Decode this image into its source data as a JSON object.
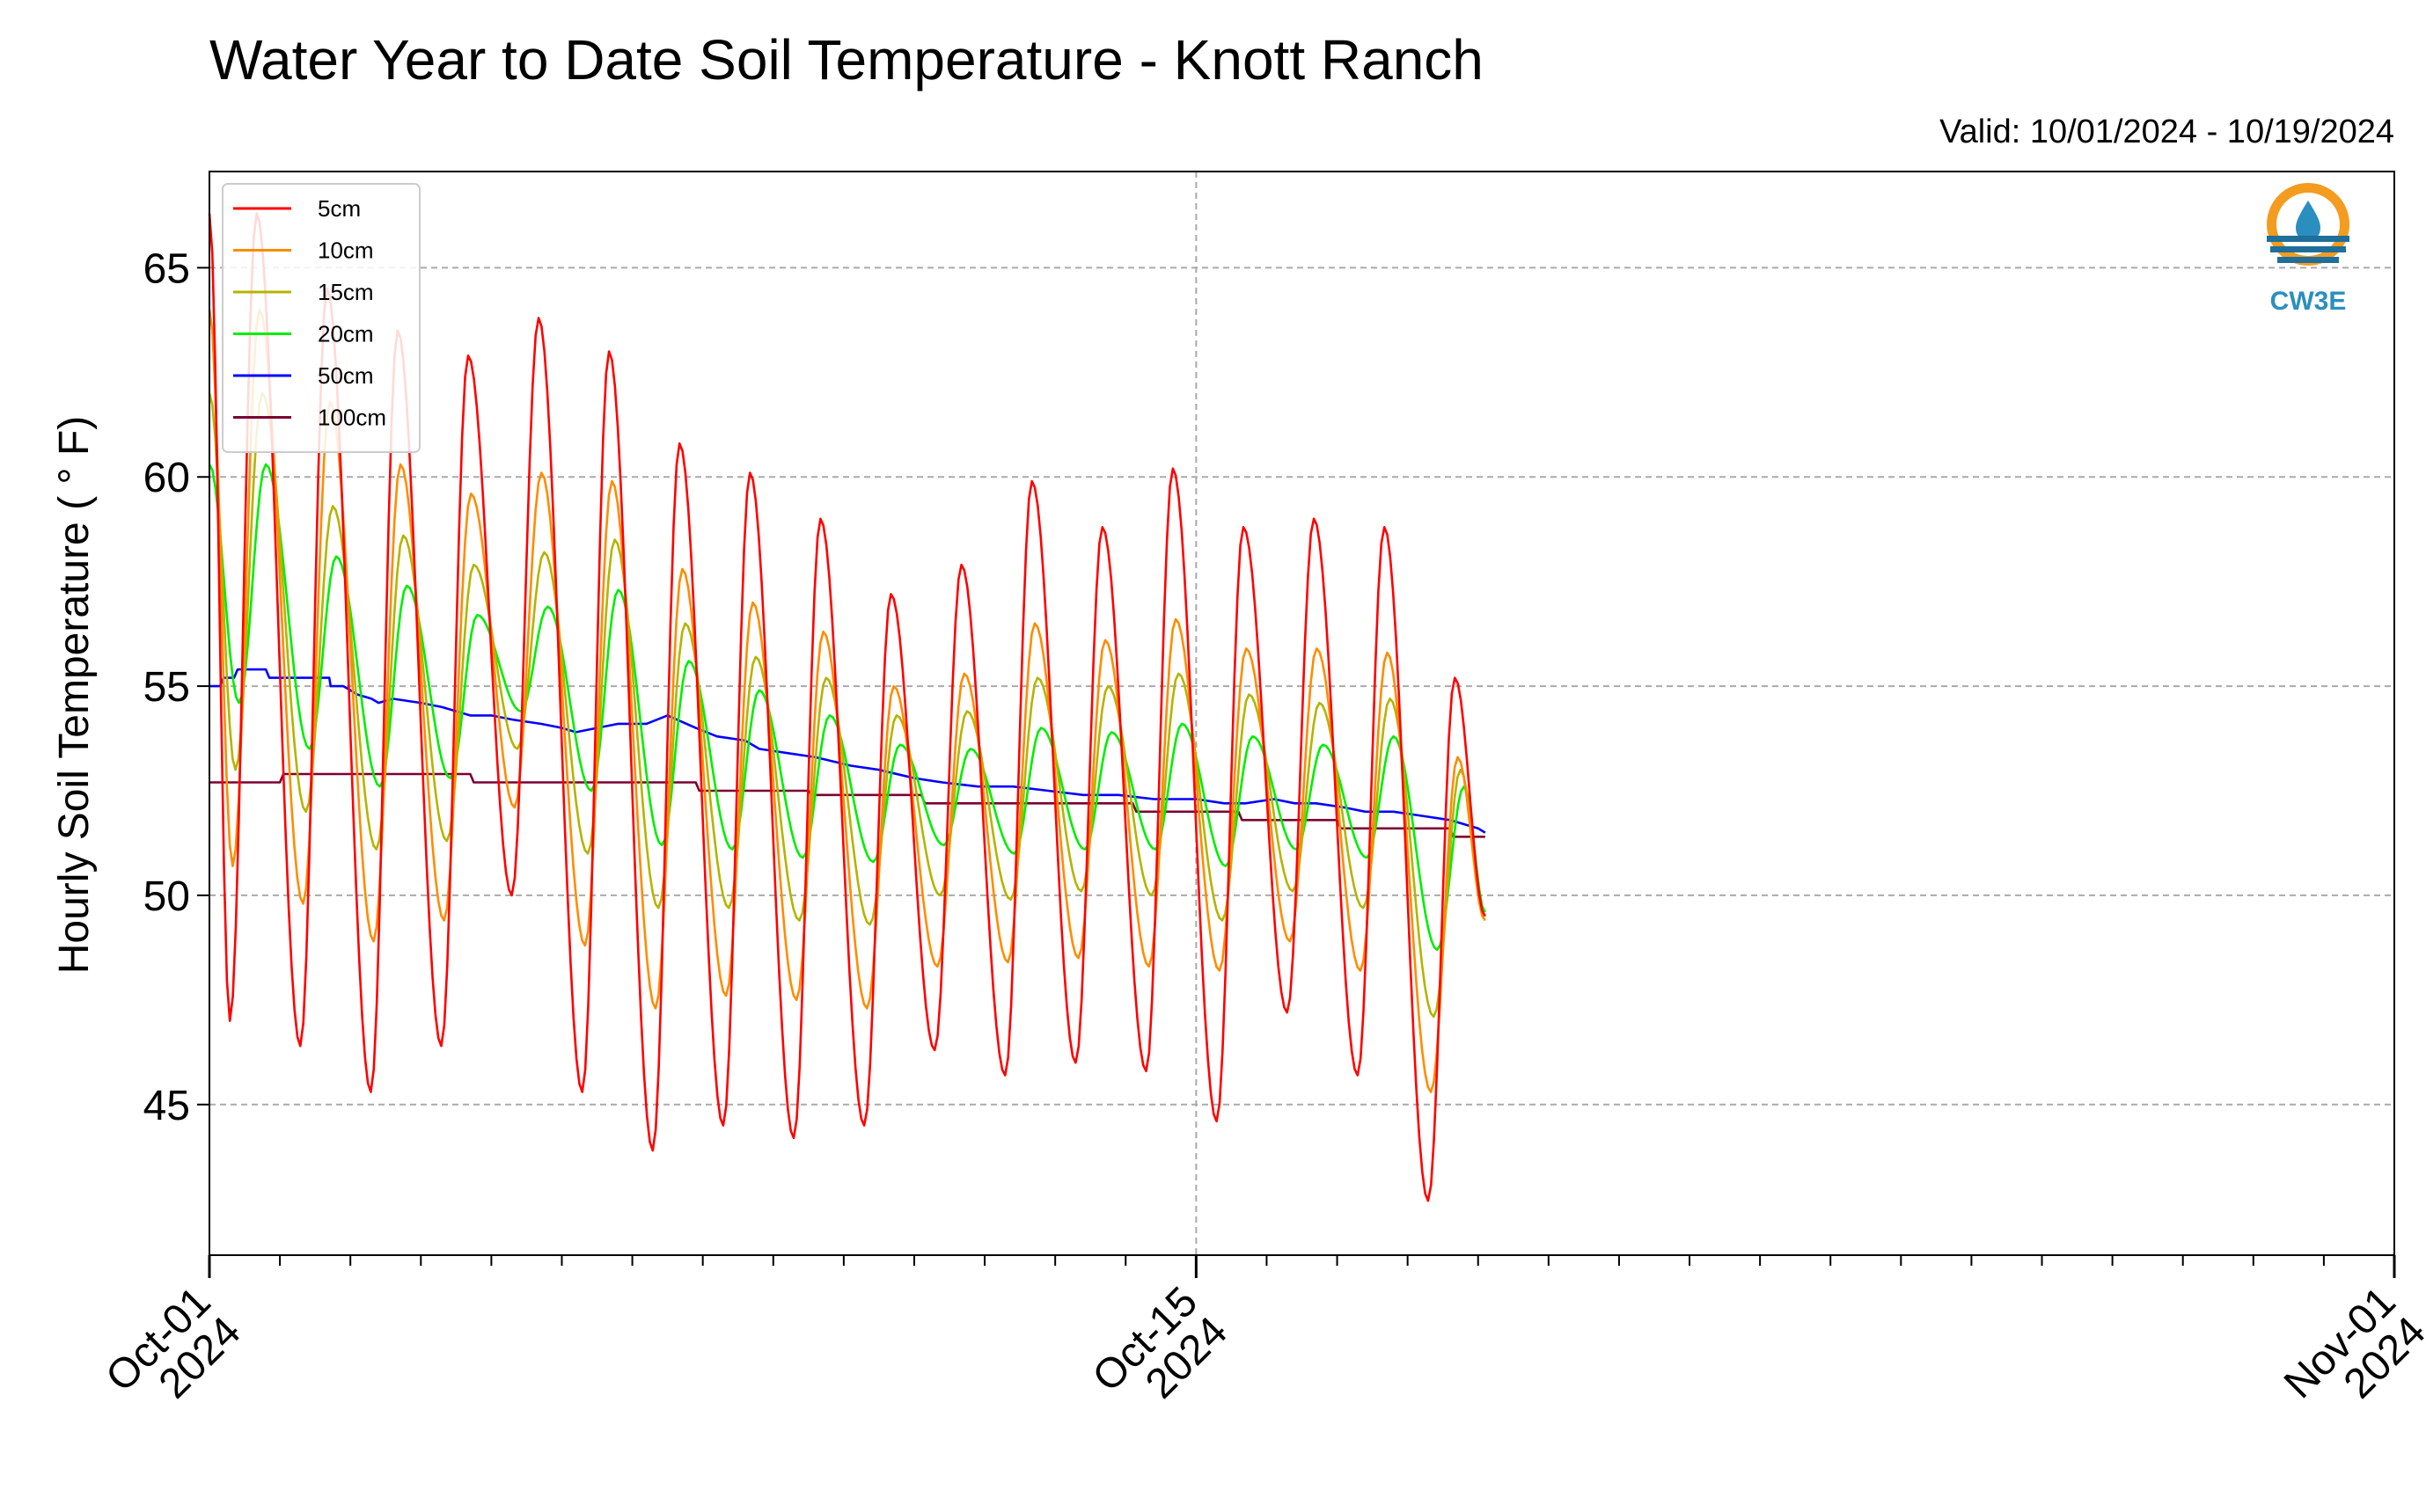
{
  "chart_data": {
    "type": "line",
    "title": "Water Year to Date Soil Temperature - Knott Ranch",
    "subtitle": "Valid: 10/01/2024 - 10/19/2024",
    "ylabel": "Hourly Soil Temperature ( ° F)",
    "xlabel": "",
    "x_range": [
      "2024-10-01",
      "2024-11-01"
    ],
    "ylim": [
      41.4,
      67.3
    ],
    "y_ticks": [
      45,
      50,
      55,
      60,
      65
    ],
    "x_tick_labels": [
      {
        "date": "2024-10-01",
        "line1": "Oct-01",
        "line2": "2024"
      },
      {
        "date": "2024-10-15",
        "line1": "Oct-15",
        "line2": "2024"
      },
      {
        "date": "2024-11-01",
        "line1": "Nov-01",
        "line2": "2024"
      }
    ],
    "grid": true,
    "legend_position": "top-left",
    "logo_text": "CW3E",
    "series": [
      {
        "name": "5cm",
        "color": "#ff0000",
        "daily_max": [
          66.3,
          64.5,
          63.5,
          62.9,
          63.8,
          63.0,
          60.8,
          60.1,
          59.0,
          57.2,
          57.9,
          59.9,
          58.8,
          60.2,
          58.8,
          59.0,
          58.8,
          55.2
        ],
        "daily_min": [
          47.0,
          46.4,
          45.3,
          46.4,
          50.0,
          45.3,
          43.9,
          44.5,
          44.2,
          44.5,
          46.3,
          45.7,
          46.0,
          45.8,
          44.6,
          47.2,
          45.7,
          42.7
        ],
        "last_value": 49.5
      },
      {
        "name": "10cm",
        "color": "#ff8c00",
        "daily_max": [
          64.0,
          61.8,
          60.3,
          59.6,
          60.1,
          59.9,
          57.8,
          57.0,
          56.3,
          55.0,
          55.3,
          56.5,
          56.1,
          56.6,
          55.9,
          55.9,
          55.8,
          53.3
        ],
        "daily_min": [
          50.7,
          49.8,
          48.9,
          49.4,
          52.1,
          48.8,
          47.3,
          47.6,
          47.5,
          47.3,
          48.3,
          48.4,
          48.5,
          48.3,
          48.2,
          48.9,
          48.2,
          45.3
        ],
        "last_value": 49.4
      },
      {
        "name": "15cm",
        "color": "#b4b400",
        "daily_max": [
          62.0,
          59.3,
          58.6,
          57.9,
          58.2,
          58.5,
          56.5,
          55.7,
          55.2,
          54.3,
          54.4,
          55.2,
          55.0,
          55.3,
          54.8,
          54.6,
          54.7,
          53.0
        ],
        "daily_min": [
          53.0,
          52.0,
          51.1,
          51.3,
          53.5,
          51.0,
          49.7,
          49.7,
          49.4,
          49.3,
          50.0,
          49.9,
          50.1,
          50.0,
          49.4,
          50.1,
          49.7,
          47.1
        ],
        "last_value": 49.5
      },
      {
        "name": "20cm",
        "color": "#00ee00",
        "daily_max": [
          60.3,
          58.1,
          57.4,
          56.7,
          56.9,
          57.3,
          55.6,
          54.9,
          54.3,
          53.6,
          53.5,
          54.0,
          53.9,
          54.1,
          53.8,
          53.6,
          53.8,
          52.6
        ],
        "daily_min": [
          54.6,
          53.5,
          52.6,
          52.8,
          54.4,
          52.5,
          51.2,
          51.1,
          50.9,
          50.8,
          51.2,
          51.0,
          51.1,
          51.1,
          50.7,
          51.1,
          50.9,
          48.7
        ],
        "last_value": 49.6
      },
      {
        "name": "50cm",
        "color": "#0000ff",
        "x_days": [
          0,
          0.15,
          0.2,
          0.35,
          0.4,
          0.8,
          0.85,
          1.7,
          1.72,
          1.9,
          2.0,
          2.1,
          2.3,
          2.4,
          2.6,
          3.0,
          3.3,
          3.5,
          3.7,
          4.0,
          4.3,
          4.7,
          5.0,
          5.2,
          5.5,
          5.8,
          6.0,
          6.2,
          6.5,
          6.9,
          7.2,
          7.6,
          7.8,
          8.2,
          8.6,
          9.1,
          9.5,
          10.0,
          10.4,
          10.9,
          11.4,
          11.9,
          12.4,
          12.9,
          13.4,
          14.0,
          14.4,
          14.7,
          15.1,
          15.4,
          15.7,
          16.1,
          16.4,
          16.8,
          17.2,
          17.6,
          18.0,
          18.1
        ],
        "values": [
          55.0,
          55.0,
          55.2,
          55.2,
          55.4,
          55.4,
          55.2,
          55.2,
          55.0,
          55.0,
          54.9,
          54.8,
          54.7,
          54.6,
          54.7,
          54.6,
          54.5,
          54.4,
          54.3,
          54.3,
          54.2,
          54.1,
          54.0,
          53.9,
          54.0,
          54.1,
          54.1,
          54.1,
          54.3,
          54.0,
          53.8,
          53.7,
          53.5,
          53.4,
          53.3,
          53.1,
          53.0,
          52.8,
          52.7,
          52.6,
          52.6,
          52.5,
          52.4,
          52.4,
          52.3,
          52.3,
          52.2,
          52.2,
          52.3,
          52.2,
          52.2,
          52.1,
          52.0,
          52.0,
          51.9,
          51.8,
          51.6,
          51.5
        ]
      },
      {
        "name": "100cm",
        "color": "#7a0033",
        "x_days": [
          0,
          1.0,
          1.05,
          3.7,
          3.75,
          6.9,
          6.95,
          8.5,
          8.55,
          10.1,
          10.15,
          13.1,
          13.15,
          14.6,
          14.65,
          16.0,
          16.05,
          17.6,
          17.65,
          18.1
        ],
        "values": [
          52.7,
          52.7,
          52.9,
          52.9,
          52.7,
          52.7,
          52.5,
          52.5,
          52.4,
          52.4,
          52.2,
          52.2,
          52.0,
          52.0,
          51.8,
          51.8,
          51.6,
          51.6,
          51.4,
          51.4
        ]
      }
    ]
  }
}
